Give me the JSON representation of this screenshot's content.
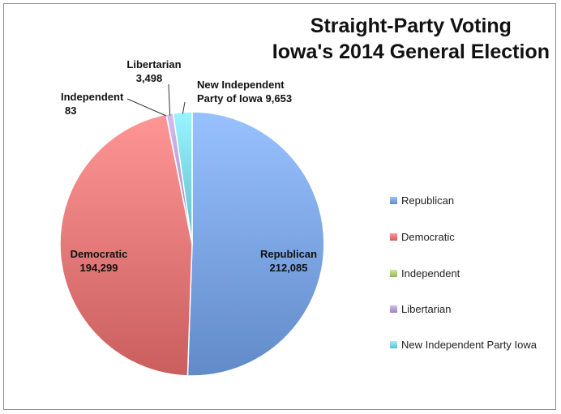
{
  "chart_data": {
    "type": "pie",
    "title": [
      "Straight-Party Voting",
      "Iowa's 2014 General Election"
    ],
    "categories": [
      "Republican",
      "Democratic",
      "Independent",
      "Libertarian",
      "New Independent Party Iowa"
    ],
    "values": [
      212085,
      194299,
      83,
      3498,
      9653
    ],
    "value_labels": [
      "212,085",
      "194,299",
      "83",
      "3,498",
      "9,653"
    ],
    "slice_label_names": [
      "Republican",
      "Democratic",
      "Independent",
      "Libertarian",
      "New Independent Party of Iowa"
    ],
    "colors": [
      "#7fa8e6",
      "#e87c7c",
      "#b2d27a",
      "#b9a3d8",
      "#7fdbe9"
    ],
    "legend_position": "right",
    "start_direction": "clockwise-from-top"
  }
}
